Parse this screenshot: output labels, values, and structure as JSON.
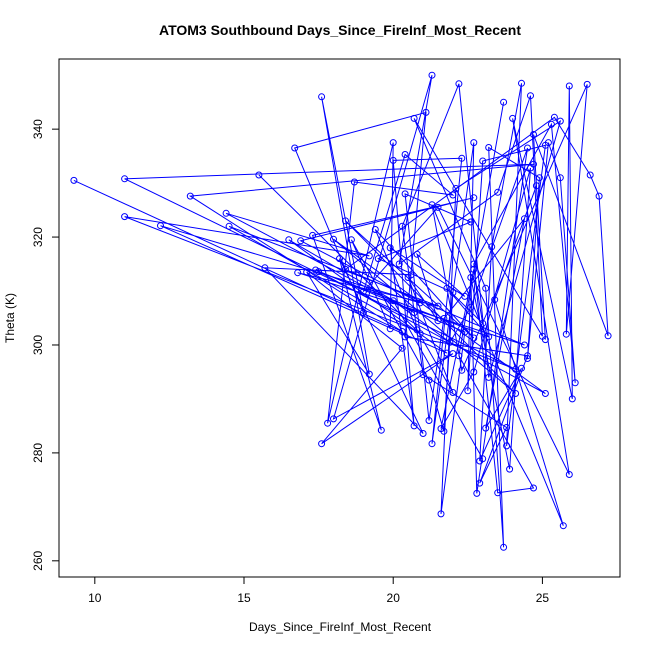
{
  "chart_data": {
    "type": "line",
    "title": "ATOM3 Southbound Days_Since_FireInf_Most_Recent",
    "xlabel": "Days_Since_FireInf_Most_Recent",
    "ylabel": "Theta (K)",
    "xlim": [
      8.8,
      27.6
    ],
    "ylim": [
      257,
      353
    ],
    "xticks": [
      10,
      15,
      20,
      25
    ],
    "yticks": [
      260,
      280,
      300,
      320,
      340
    ],
    "grid": false,
    "markers": "open-circle",
    "line_color": "#0000ff",
    "series": [
      {
        "points": [
          [
            9.3,
            330.5
          ],
          [
            20.3,
            302.5
          ],
          [
            13.2,
            327.6
          ],
          [
            24.7,
            333.5
          ],
          [
            11.0,
            330.8
          ],
          [
            24.1,
            295.5
          ],
          [
            11.0,
            323.8
          ],
          [
            19.2,
            316.5
          ],
          [
            14.4,
            324.4
          ],
          [
            20.7,
            306.0
          ],
          [
            16.5,
            319.5
          ],
          [
            21.8,
            298.5
          ],
          [
            12.2,
            322.1
          ],
          [
            20.9,
            307.8
          ],
          [
            16.9,
            319.3
          ],
          [
            22.7,
            327.3
          ],
          [
            17.3,
            320.3
          ],
          [
            19.6,
            284.2
          ],
          [
            18.2,
            316.0
          ],
          [
            21.0,
            283.6
          ],
          [
            15.7,
            314.3
          ],
          [
            20.6,
            313.0
          ],
          [
            17.4,
            313.9
          ],
          [
            22.4,
            302.4
          ],
          [
            21.6,
            268.7
          ],
          [
            22.1,
            329.0
          ],
          [
            25.6,
            341.5
          ],
          [
            23.2,
            294.0
          ],
          [
            22.2,
            348.4
          ],
          [
            20.3,
            322.0
          ],
          [
            21.0,
            294.5
          ],
          [
            23.8,
            284.7
          ],
          [
            22.9,
            274.4
          ],
          [
            24.5,
            298.0
          ],
          [
            20.4,
            301.5
          ],
          [
            21.1,
            343.1
          ],
          [
            16.7,
            336.5
          ],
          [
            19.0,
            306.0
          ],
          [
            17.6,
            346.0
          ],
          [
            19.2,
            294.6
          ],
          [
            17.1,
            313.5
          ],
          [
            20.3,
            299.4
          ],
          [
            17.6,
            281.7
          ],
          [
            22.0,
            298.4
          ],
          [
            18.0,
            286.3
          ],
          [
            21.3,
            350.0
          ],
          [
            20.2,
            315.0
          ],
          [
            23.5,
            328.3
          ],
          [
            24.6,
            346.2
          ],
          [
            25.0,
            301.6
          ],
          [
            20.7,
            342.0
          ],
          [
            23.1,
            310.5
          ],
          [
            23.7,
            262.5
          ],
          [
            23.2,
            336.6
          ],
          [
            24.9,
            331.0
          ],
          [
            24.5,
            297.5
          ],
          [
            25.2,
            337.5
          ],
          [
            25.6,
            331.0
          ],
          [
            26.1,
            293.0
          ],
          [
            25.3,
            340.9
          ],
          [
            22.7,
            315.0
          ],
          [
            23.5,
            272.6
          ],
          [
            24.7,
            273.5
          ],
          [
            22.2,
            298.0
          ],
          [
            23.7,
            345.0
          ]
        ]
      },
      {
        "points": [
          [
            15.5,
            331.5
          ],
          [
            20.9,
            302.1
          ],
          [
            14.5,
            322.0
          ],
          [
            21.5,
            307.2
          ],
          [
            16.8,
            313.4
          ],
          [
            24.4,
            300.0
          ],
          [
            18.4,
            314.0
          ],
          [
            25.4,
            342.2
          ],
          [
            26.6,
            331.5
          ],
          [
            26.9,
            327.6
          ],
          [
            27.2,
            301.7
          ],
          [
            24.7,
            339.0
          ],
          [
            25.1,
            301.0
          ],
          [
            24.8,
            329.5
          ],
          [
            23.4,
            308.4
          ],
          [
            25.7,
            266.5
          ],
          [
            21.3,
            326.0
          ],
          [
            22.3,
            295.3
          ],
          [
            26.5,
            348.3
          ],
          [
            25.8,
            302.0
          ],
          [
            25.9,
            348.0
          ],
          [
            26.0,
            290.0
          ],
          [
            24.0,
            342.0
          ],
          [
            25.9,
            276.0
          ],
          [
            21.5,
            325.5
          ],
          [
            19.0,
            309.9
          ],
          [
            20.4,
            335.3
          ],
          [
            22.0,
            327.8
          ],
          [
            18.7,
            330.2
          ],
          [
            17.8,
            285.5
          ],
          [
            20.0,
            337.5
          ],
          [
            19.9,
            303.0
          ],
          [
            18.6,
            319.5
          ],
          [
            21.2,
            293.5
          ],
          [
            21.7,
            284.0
          ],
          [
            22.0,
            309.7
          ],
          [
            19.5,
            316.0
          ],
          [
            22.6,
            322.8
          ],
          [
            20.4,
            328.0
          ],
          [
            21.2,
            286.0
          ],
          [
            21.7,
            304.9
          ],
          [
            24.4,
            323.4
          ],
          [
            23.1,
            284.6
          ],
          [
            24.3,
            295.7
          ],
          [
            22.9,
            278.5
          ],
          [
            23.3,
            318.2
          ],
          [
            24.3,
            348.5
          ],
          [
            23.8,
            281.3
          ],
          [
            25.1,
            337.0
          ],
          [
            23.0,
            334.1
          ],
          [
            22.5,
            291.5
          ],
          [
            22.7,
            337.5
          ],
          [
            21.3,
            281.7
          ],
          [
            22.3,
            334.6
          ],
          [
            20.0,
            334.2
          ],
          [
            20.7,
            285.0
          ],
          [
            19.9,
            318.0
          ],
          [
            22.4,
            309.0
          ],
          [
            20.8,
            316.8
          ],
          [
            21.5,
            304.5
          ],
          [
            20.5,
            312.5
          ],
          [
            22.0,
            291.2
          ],
          [
            20.8,
            302.8
          ],
          [
            19.4,
            321.4
          ],
          [
            22.7,
            301.3
          ],
          [
            18.4,
            323.0
          ],
          [
            24.1,
            291.0
          ],
          [
            18.0,
            319.6
          ],
          [
            25.1,
            291.0
          ],
          [
            17.5,
            313.6
          ],
          [
            23.2,
            301.5
          ],
          [
            21.8,
            310.5
          ],
          [
            23.0,
            304.0
          ],
          [
            22.7,
            314.0
          ],
          [
            21.6,
            284.5
          ],
          [
            22.7,
            295.0
          ],
          [
            24.6,
            332.8
          ],
          [
            23.9,
            277.0
          ],
          [
            22.6,
            312.5
          ],
          [
            22.8,
            272.5
          ],
          [
            24.5,
            336.5
          ],
          [
            22.6,
            307.0
          ],
          [
            21.9,
            300.5
          ],
          [
            20.0,
            308.2
          ],
          [
            23.0,
            278.9
          ]
        ]
      }
    ]
  }
}
